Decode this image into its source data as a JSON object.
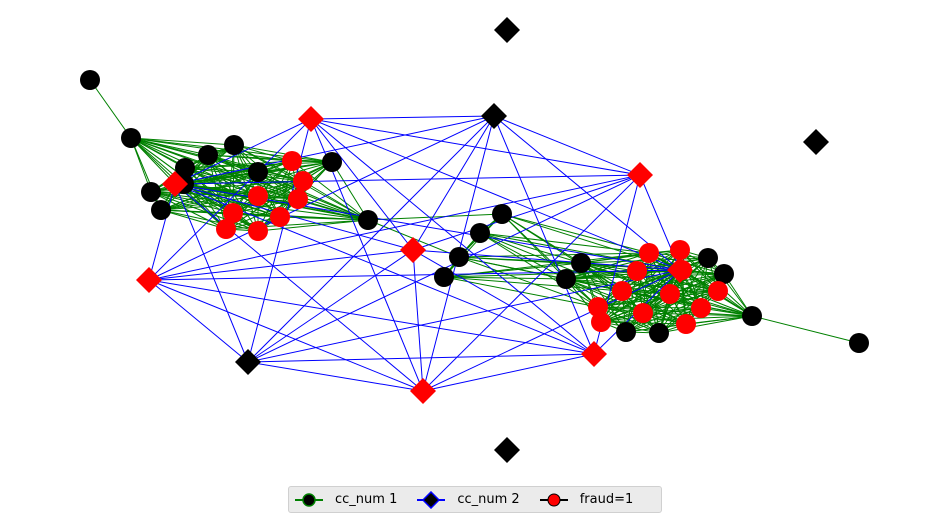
{
  "legend": {
    "items": [
      {
        "label": "cc_num 1",
        "marker": "circle",
        "marker_color": "#000000",
        "line_color": "#008000"
      },
      {
        "label": "cc_num 2",
        "marker": "diamond",
        "marker_color": "#000000",
        "line_color": "#0000ff"
      },
      {
        "label": "fraud=1",
        "marker": "circle",
        "marker_color": "#ff0000",
        "line_color": "#000000"
      }
    ]
  },
  "colors": {
    "cc_num_1_edge": "#008000",
    "cc_num_2_edge": "#0000ff",
    "fraud_node": "#ff0000",
    "normal_node": "#000000"
  }
}
